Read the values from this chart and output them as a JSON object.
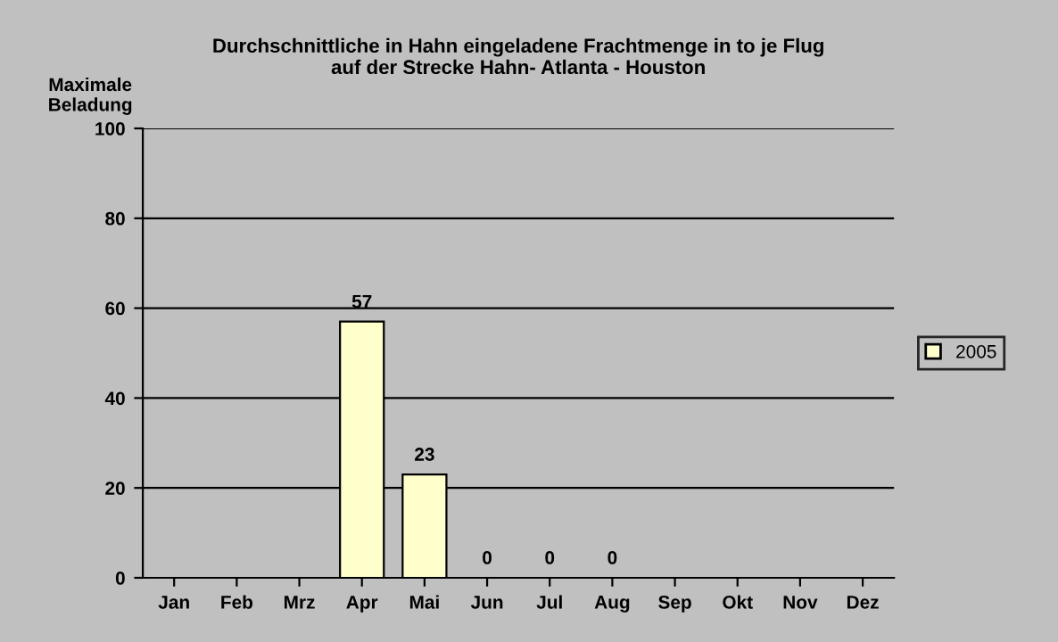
{
  "chart_data": {
    "type": "bar",
    "title": "Durchschnittliche in Hahn eingeladene Frachtmenge in to je Flug\nauf der Strecke Hahn- Atlanta - Houston",
    "ylabel": "Maximale\nBeladung",
    "categories": [
      "Jan",
      "Feb",
      "Mrz",
      "Apr",
      "Mai",
      "Jun",
      "Jul",
      "Aug",
      "Sep",
      "Okt",
      "Nov",
      "Dez"
    ],
    "series": [
      {
        "name": "2005",
        "color": "#ffffcc",
        "values": [
          null,
          null,
          null,
          57,
          23,
          0,
          0,
          0,
          null,
          null,
          null,
          null
        ]
      }
    ],
    "ylim": [
      0,
      100
    ],
    "yticks": [
      0,
      20,
      40,
      60,
      80,
      100
    ],
    "grid": "y",
    "legend": "right",
    "data_labels": true
  }
}
